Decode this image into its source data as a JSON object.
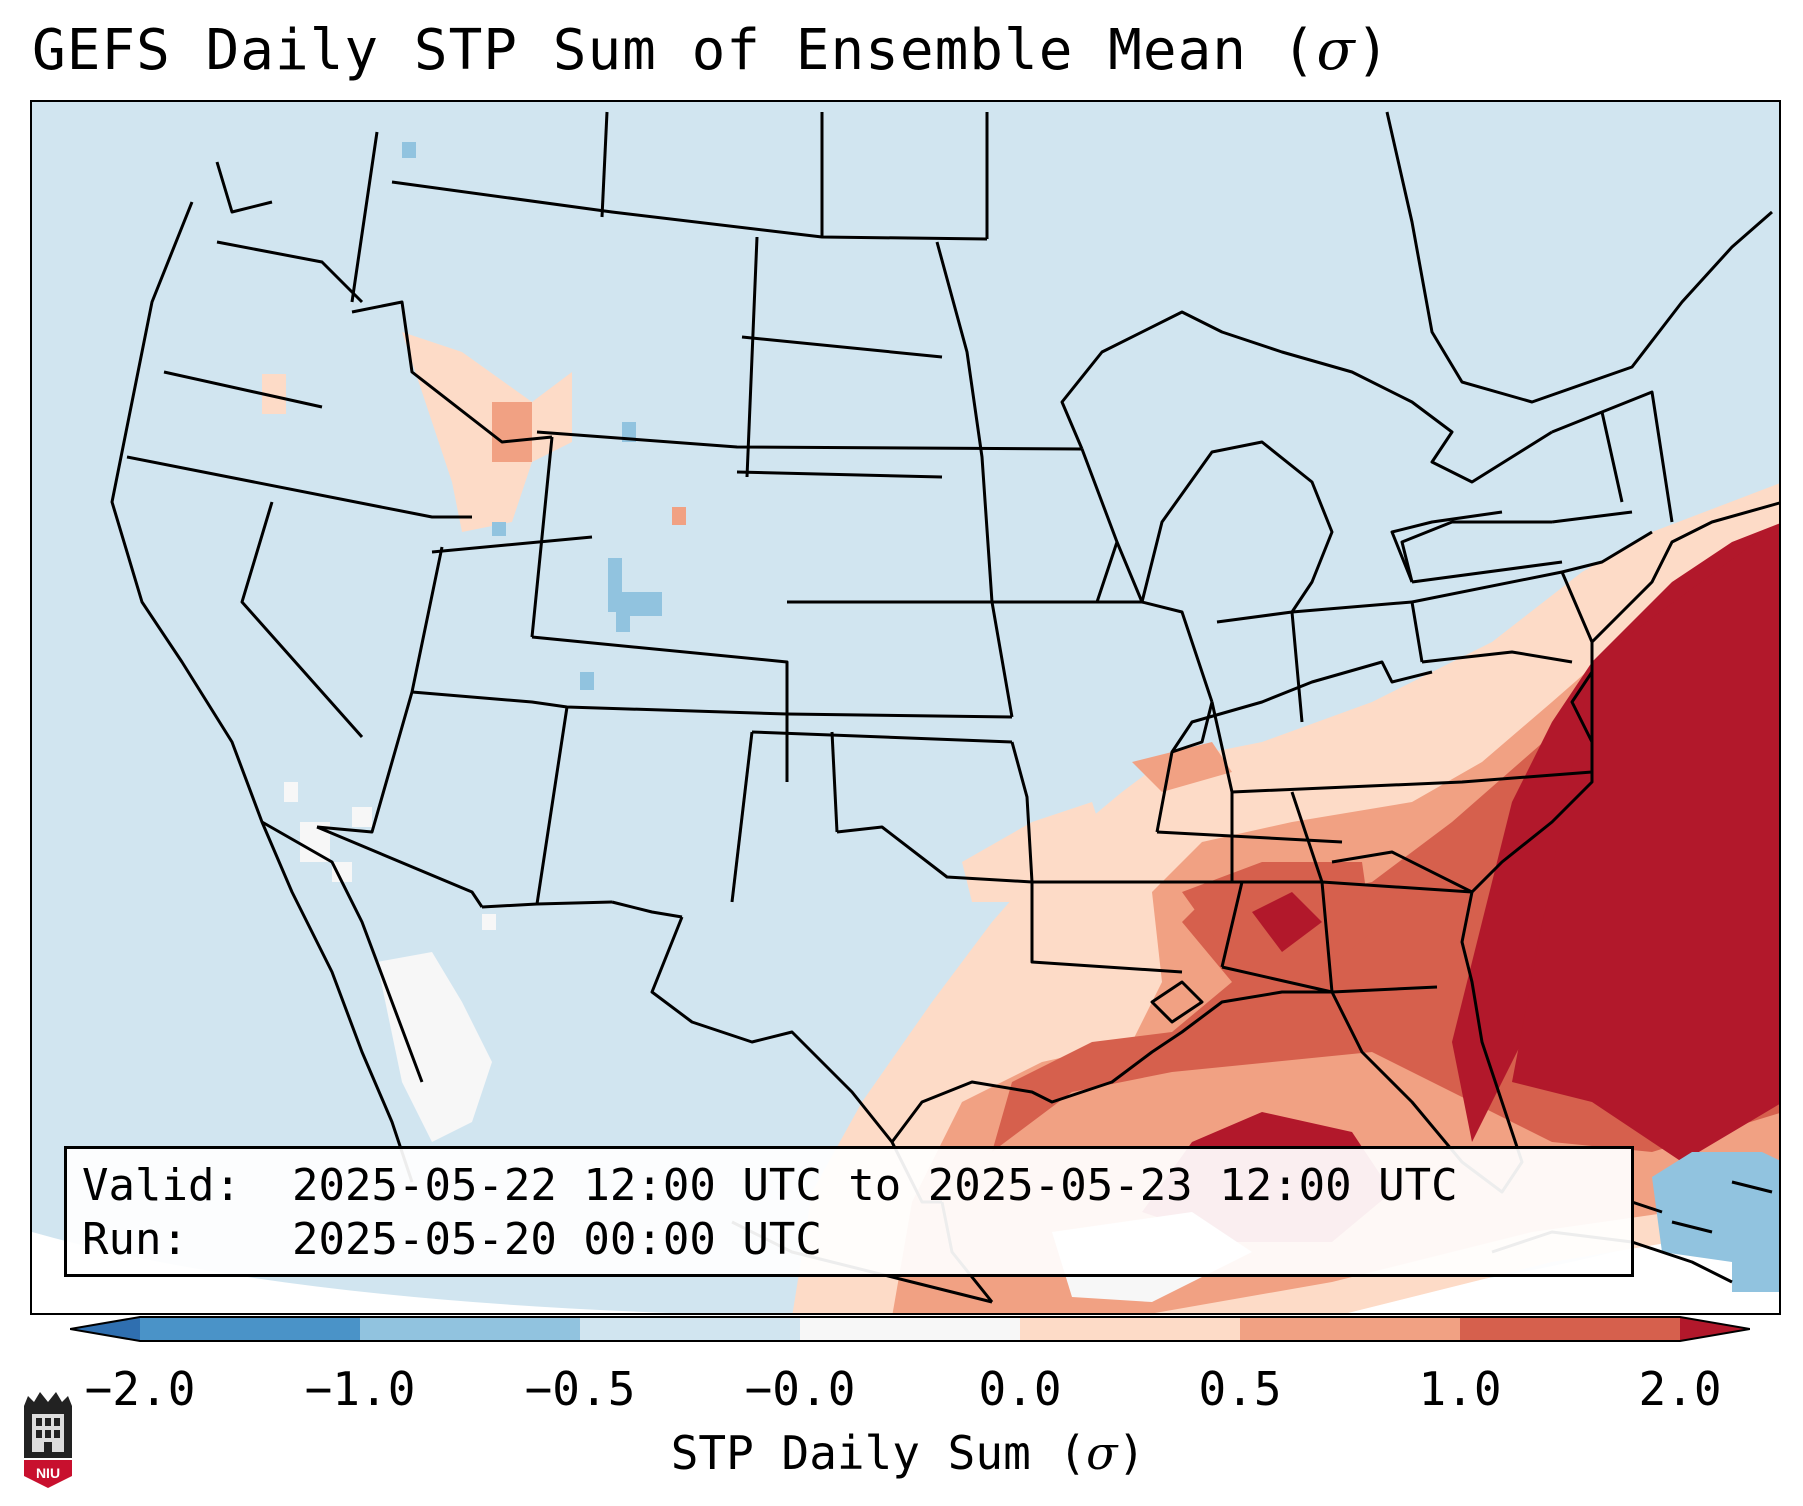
{
  "title": {
    "text": "GEFS Daily STP Sum of Ensemble Mean (",
    "symbol": "σ",
    "close": ")"
  },
  "info": {
    "valid_label": "Valid:",
    "valid_value": "2025-05-22 12:00 UTC to 2025-05-23 12:00 UTC",
    "run_label": "Run:",
    "run_value": "2025-05-20 00:00 UTC"
  },
  "colorbar": {
    "ticks": [
      "−2.0",
      "−1.0",
      "−0.5",
      "−0.0",
      "0.0",
      "0.5",
      "1.0",
      "2.0"
    ],
    "label_text": "STP Daily Sum (",
    "label_symbol": "σ",
    "label_close": ")",
    "colors": [
      "#2f6fb0",
      "#4a93c8",
      "#91c3df",
      "#d1e5f0",
      "#f7f7f7",
      "#fddbc7",
      "#f1a183",
      "#d6604d",
      "#b2182b"
    ]
  },
  "map": {
    "background_color": "#d1e5f0",
    "land_border_color": "#000000"
  },
  "logo": {
    "text": "NIU"
  }
}
